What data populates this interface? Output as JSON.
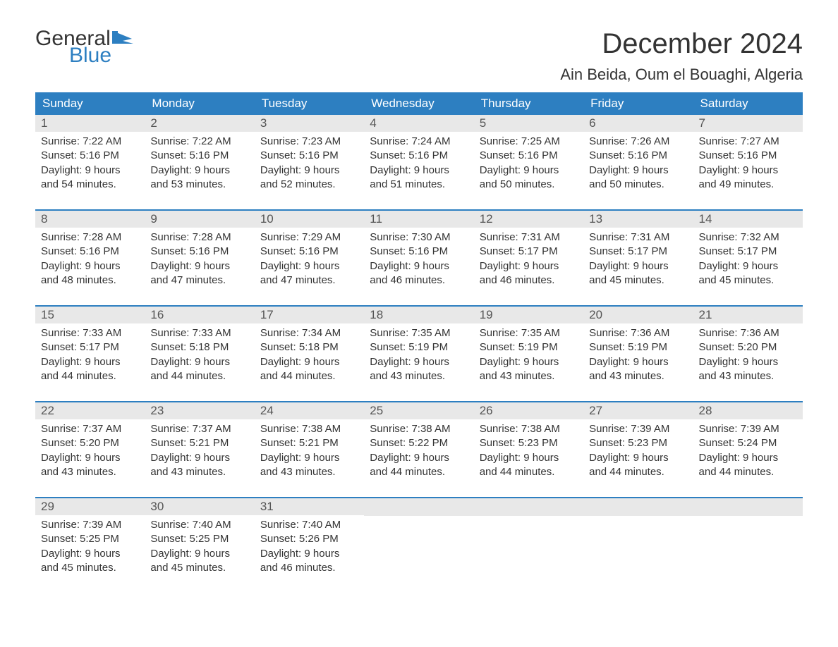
{
  "logo": {
    "word1": "General",
    "word2": "Blue",
    "color_general": "#333333",
    "color_blue": "#2d7fc1",
    "flag_color": "#2d7fc1"
  },
  "header": {
    "month_title": "December 2024",
    "location": "Ain Beida, Oum el Bouaghi, Algeria",
    "title_fontsize": 40,
    "location_fontsize": 22
  },
  "colors": {
    "header_bg": "#2d7fc1",
    "header_text": "#ffffff",
    "daynum_bg": "#e8e8e8",
    "week_border": "#2d7fc1",
    "body_text": "#333333",
    "page_bg": "#ffffff"
  },
  "day_names": [
    "Sunday",
    "Monday",
    "Tuesday",
    "Wednesday",
    "Thursday",
    "Friday",
    "Saturday"
  ],
  "labels": {
    "sunrise": "Sunrise:",
    "sunset": "Sunset:",
    "daylight": "Daylight:"
  },
  "weeks": [
    [
      {
        "day": "1",
        "sunrise": "7:22 AM",
        "sunset": "5:16 PM",
        "daylight1": "9 hours",
        "daylight2": "and 54 minutes."
      },
      {
        "day": "2",
        "sunrise": "7:22 AM",
        "sunset": "5:16 PM",
        "daylight1": "9 hours",
        "daylight2": "and 53 minutes."
      },
      {
        "day": "3",
        "sunrise": "7:23 AM",
        "sunset": "5:16 PM",
        "daylight1": "9 hours",
        "daylight2": "and 52 minutes."
      },
      {
        "day": "4",
        "sunrise": "7:24 AM",
        "sunset": "5:16 PM",
        "daylight1": "9 hours",
        "daylight2": "and 51 minutes."
      },
      {
        "day": "5",
        "sunrise": "7:25 AM",
        "sunset": "5:16 PM",
        "daylight1": "9 hours",
        "daylight2": "and 50 minutes."
      },
      {
        "day": "6",
        "sunrise": "7:26 AM",
        "sunset": "5:16 PM",
        "daylight1": "9 hours",
        "daylight2": "and 50 minutes."
      },
      {
        "day": "7",
        "sunrise": "7:27 AM",
        "sunset": "5:16 PM",
        "daylight1": "9 hours",
        "daylight2": "and 49 minutes."
      }
    ],
    [
      {
        "day": "8",
        "sunrise": "7:28 AM",
        "sunset": "5:16 PM",
        "daylight1": "9 hours",
        "daylight2": "and 48 minutes."
      },
      {
        "day": "9",
        "sunrise": "7:28 AM",
        "sunset": "5:16 PM",
        "daylight1": "9 hours",
        "daylight2": "and 47 minutes."
      },
      {
        "day": "10",
        "sunrise": "7:29 AM",
        "sunset": "5:16 PM",
        "daylight1": "9 hours",
        "daylight2": "and 47 minutes."
      },
      {
        "day": "11",
        "sunrise": "7:30 AM",
        "sunset": "5:16 PM",
        "daylight1": "9 hours",
        "daylight2": "and 46 minutes."
      },
      {
        "day": "12",
        "sunrise": "7:31 AM",
        "sunset": "5:17 PM",
        "daylight1": "9 hours",
        "daylight2": "and 46 minutes."
      },
      {
        "day": "13",
        "sunrise": "7:31 AM",
        "sunset": "5:17 PM",
        "daylight1": "9 hours",
        "daylight2": "and 45 minutes."
      },
      {
        "day": "14",
        "sunrise": "7:32 AM",
        "sunset": "5:17 PM",
        "daylight1": "9 hours",
        "daylight2": "and 45 minutes."
      }
    ],
    [
      {
        "day": "15",
        "sunrise": "7:33 AM",
        "sunset": "5:17 PM",
        "daylight1": "9 hours",
        "daylight2": "and 44 minutes."
      },
      {
        "day": "16",
        "sunrise": "7:33 AM",
        "sunset": "5:18 PM",
        "daylight1": "9 hours",
        "daylight2": "and 44 minutes."
      },
      {
        "day": "17",
        "sunrise": "7:34 AM",
        "sunset": "5:18 PM",
        "daylight1": "9 hours",
        "daylight2": "and 44 minutes."
      },
      {
        "day": "18",
        "sunrise": "7:35 AM",
        "sunset": "5:19 PM",
        "daylight1": "9 hours",
        "daylight2": "and 43 minutes."
      },
      {
        "day": "19",
        "sunrise": "7:35 AM",
        "sunset": "5:19 PM",
        "daylight1": "9 hours",
        "daylight2": "and 43 minutes."
      },
      {
        "day": "20",
        "sunrise": "7:36 AM",
        "sunset": "5:19 PM",
        "daylight1": "9 hours",
        "daylight2": "and 43 minutes."
      },
      {
        "day": "21",
        "sunrise": "7:36 AM",
        "sunset": "5:20 PM",
        "daylight1": "9 hours",
        "daylight2": "and 43 minutes."
      }
    ],
    [
      {
        "day": "22",
        "sunrise": "7:37 AM",
        "sunset": "5:20 PM",
        "daylight1": "9 hours",
        "daylight2": "and 43 minutes."
      },
      {
        "day": "23",
        "sunrise": "7:37 AM",
        "sunset": "5:21 PM",
        "daylight1": "9 hours",
        "daylight2": "and 43 minutes."
      },
      {
        "day": "24",
        "sunrise": "7:38 AM",
        "sunset": "5:21 PM",
        "daylight1": "9 hours",
        "daylight2": "and 43 minutes."
      },
      {
        "day": "25",
        "sunrise": "7:38 AM",
        "sunset": "5:22 PM",
        "daylight1": "9 hours",
        "daylight2": "and 44 minutes."
      },
      {
        "day": "26",
        "sunrise": "7:38 AM",
        "sunset": "5:23 PM",
        "daylight1": "9 hours",
        "daylight2": "and 44 minutes."
      },
      {
        "day": "27",
        "sunrise": "7:39 AM",
        "sunset": "5:23 PM",
        "daylight1": "9 hours",
        "daylight2": "and 44 minutes."
      },
      {
        "day": "28",
        "sunrise": "7:39 AM",
        "sunset": "5:24 PM",
        "daylight1": "9 hours",
        "daylight2": "and 44 minutes."
      }
    ],
    [
      {
        "day": "29",
        "sunrise": "7:39 AM",
        "sunset": "5:25 PM",
        "daylight1": "9 hours",
        "daylight2": "and 45 minutes."
      },
      {
        "day": "30",
        "sunrise": "7:40 AM",
        "sunset": "5:25 PM",
        "daylight1": "9 hours",
        "daylight2": "and 45 minutes."
      },
      {
        "day": "31",
        "sunrise": "7:40 AM",
        "sunset": "5:26 PM",
        "daylight1": "9 hours",
        "daylight2": "and 46 minutes."
      },
      null,
      null,
      null,
      null
    ]
  ]
}
